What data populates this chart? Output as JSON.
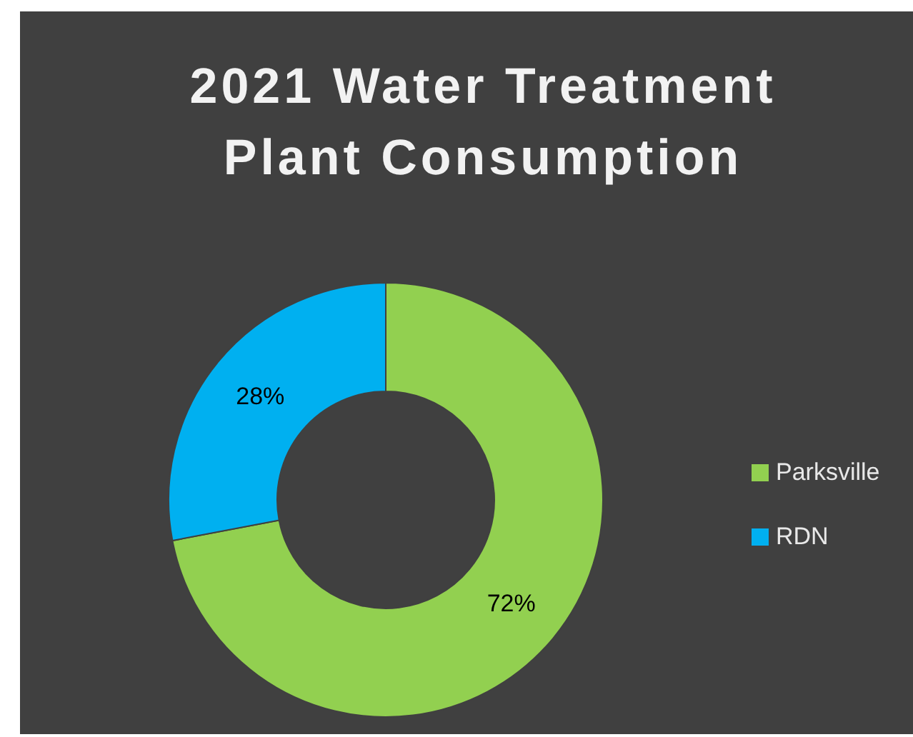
{
  "chart_data": {
    "type": "donut",
    "title": "2021 Water Treatment Plant Consumption",
    "categories": [
      "Parksville",
      "RDN"
    ],
    "values": [
      72,
      28
    ],
    "colors": [
      "#92d050",
      "#00b0f0"
    ],
    "value_labels": [
      "72%",
      "28%"
    ],
    "legend": "right"
  }
}
